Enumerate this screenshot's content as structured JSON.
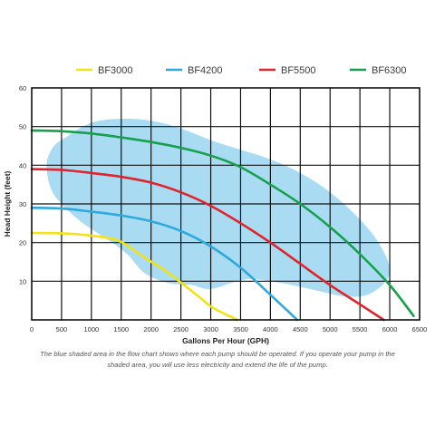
{
  "chart_data": {
    "type": "line",
    "title": "",
    "xlabel": "Gallons Per Hour (GPH)",
    "ylabel": "Head Height (feet)",
    "xlim": [
      0,
      6500
    ],
    "ylim": [
      0,
      60
    ],
    "x_ticks": [
      "0",
      "500",
      "1000",
      "1500",
      "2000",
      "2500",
      "3000",
      "3500",
      "4000",
      "4500",
      "5000",
      "5500",
      "6000",
      "6500"
    ],
    "y_ticks": [
      "10",
      "20",
      "30",
      "40",
      "50",
      "60"
    ],
    "grid": true,
    "legend_position": "top",
    "series": [
      {
        "name": "BF3000",
        "color": "#f2e21a",
        "points": [
          [
            0,
            22.5
          ],
          [
            500,
            22.4
          ],
          [
            1000,
            21.8
          ],
          [
            1450,
            20.5
          ],
          [
            1800,
            17
          ],
          [
            2300,
            12
          ],
          [
            2800,
            6
          ],
          [
            3050,
            3
          ],
          [
            3450,
            0
          ]
        ]
      },
      {
        "name": "BF4200",
        "color": "#2ea8dd",
        "points": [
          [
            0,
            29
          ],
          [
            500,
            28.8
          ],
          [
            1000,
            28
          ],
          [
            1500,
            27
          ],
          [
            2000,
            25.5
          ],
          [
            2500,
            23
          ],
          [
            3000,
            19
          ],
          [
            3500,
            13.5
          ],
          [
            4000,
            6.5
          ],
          [
            4450,
            0
          ]
        ]
      },
      {
        "name": "BF5500",
        "color": "#e0242c",
        "points": [
          [
            0,
            39
          ],
          [
            500,
            38.8
          ],
          [
            1000,
            38
          ],
          [
            1500,
            37
          ],
          [
            2000,
            35.5
          ],
          [
            2500,
            33
          ],
          [
            3000,
            29.5
          ],
          [
            3500,
            25
          ],
          [
            4000,
            20
          ],
          [
            4500,
            14.5
          ],
          [
            5000,
            9
          ],
          [
            5500,
            4
          ],
          [
            5900,
            0
          ]
        ]
      },
      {
        "name": "BF6300",
        "color": "#16a04b",
        "points": [
          [
            0,
            49
          ],
          [
            500,
            48.8
          ],
          [
            1000,
            48.2
          ],
          [
            1500,
            47.2
          ],
          [
            2000,
            46
          ],
          [
            2500,
            44.5
          ],
          [
            3000,
            42.5
          ],
          [
            3500,
            39.5
          ],
          [
            4000,
            35
          ],
          [
            4500,
            30
          ],
          [
            5000,
            24
          ],
          [
            5500,
            17
          ],
          [
            6000,
            9
          ],
          [
            6400,
            1
          ]
        ]
      }
    ],
    "shaded_region": {
      "color": "#a9dbf2",
      "points": [
        [
          550,
          47
        ],
        [
          1000,
          51
        ],
        [
          1500,
          52
        ],
        [
          2000,
          51.5
        ],
        [
          2500,
          49.5
        ],
        [
          3000,
          46.5
        ],
        [
          3500,
          44
        ],
        [
          4000,
          41.5
        ],
        [
          4500,
          38
        ],
        [
          5000,
          33
        ],
        [
          5500,
          26
        ],
        [
          5850,
          19
        ],
        [
          6000,
          12
        ],
        [
          5700,
          7
        ],
        [
          5300,
          6
        ],
        [
          4800,
          7.5
        ],
        [
          4200,
          9.5
        ],
        [
          3600,
          10.5
        ],
        [
          3000,
          8
        ],
        [
          2700,
          9
        ],
        [
          2300,
          9.5
        ],
        [
          1900,
          12
        ],
        [
          1600,
          17
        ],
        [
          1300,
          20.5
        ],
        [
          1000,
          23.5
        ],
        [
          700,
          27
        ],
        [
          350,
          33
        ],
        [
          250,
          40
        ],
        [
          350,
          44.5
        ]
      ]
    },
    "caption": "The blue shaded area in the flow chart shows where each pump should be operated. If you operate your pump in the shaded area, you will use less electricity and extend the life of the pump."
  }
}
